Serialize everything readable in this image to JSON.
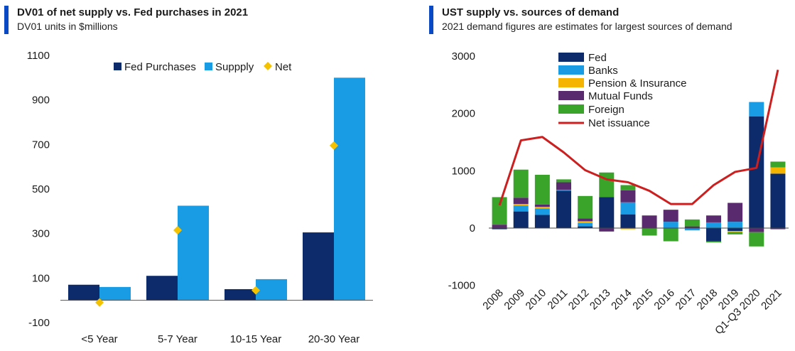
{
  "chart_data": [
    {
      "type": "bar",
      "title": "DV01 of net supply vs. Fed purchases in 2021",
      "subtitle": "DV01 units in $millions",
      "categories": [
        "<5 Year",
        "5-7 Year",
        "10-15 Year",
        "20-30 Year"
      ],
      "series": [
        {
          "name": "Fed Purchases",
          "type": "bar",
          "color": "#0d2a6b",
          "values": [
            70,
            110,
            50,
            305
          ]
        },
        {
          "name": "Suppply",
          "type": "bar",
          "color": "#1a9ce4",
          "values": [
            60,
            425,
            95,
            1000
          ]
        },
        {
          "name": "Net",
          "type": "scatter",
          "color": "#f5c200",
          "values": [
            -10,
            315,
            45,
            695
          ]
        }
      ],
      "y_ticks": [
        "1100",
        "900",
        "700",
        "500",
        "300",
        "100",
        "-100"
      ],
      "ylim": [
        -100,
        1100
      ],
      "legend": "top"
    },
    {
      "type": "bar",
      "title": "UST supply vs. sources of demand",
      "subtitle": "2021 demand figures are estimates for largest sources of demand",
      "categories": [
        "2008",
        "2009",
        "2010",
        "2011",
        "2012",
        "2013",
        "2014",
        "2015",
        "2016",
        "2017",
        "2018",
        "2019",
        "Q1-Q3 2020",
        "2021"
      ],
      "series": [
        {
          "name": "Fed",
          "type": "stacked-bar",
          "color": "#0d2a6b",
          "values": [
            -20,
            290,
            230,
            650,
            30,
            540,
            240,
            0,
            0,
            0,
            -230,
            -50,
            1950,
            950
          ]
        },
        {
          "name": "Banks",
          "type": "stacked-bar",
          "color": "#1a9ce4",
          "values": [
            0,
            100,
            110,
            20,
            60,
            0,
            210,
            0,
            110,
            -40,
            100,
            110,
            250,
            0
          ]
        },
        {
          "name": "Pension & Insurance",
          "type": "stacked-bar",
          "color": "#f5b400",
          "values": [
            0,
            30,
            30,
            0,
            30,
            0,
            -20,
            0,
            0,
            0,
            0,
            -20,
            0,
            110
          ]
        },
        {
          "name": "Mutual Funds",
          "type": "stacked-bar",
          "color": "#5a2a6e",
          "values": [
            60,
            110,
            40,
            130,
            50,
            -60,
            210,
            220,
            210,
            30,
            120,
            330,
            -70,
            -20
          ]
        },
        {
          "name": "Foreign",
          "type": "stacked-bar",
          "color": "#3aa42a",
          "values": [
            480,
            490,
            520,
            50,
            390,
            430,
            90,
            -130,
            -230,
            120,
            -20,
            -40,
            -250,
            100
          ]
        },
        {
          "name": "Net issuance",
          "type": "line",
          "color": "#cc1f1f",
          "values": [
            400,
            1530,
            1590,
            1320,
            1010,
            850,
            800,
            650,
            420,
            420,
            750,
            980,
            1050,
            2760
          ]
        }
      ],
      "y_ticks": [
        "3000",
        "2000",
        "1000",
        "0",
        "-1000"
      ],
      "ylim": [
        -1000,
        3000
      ],
      "legend": "top-left"
    }
  ]
}
